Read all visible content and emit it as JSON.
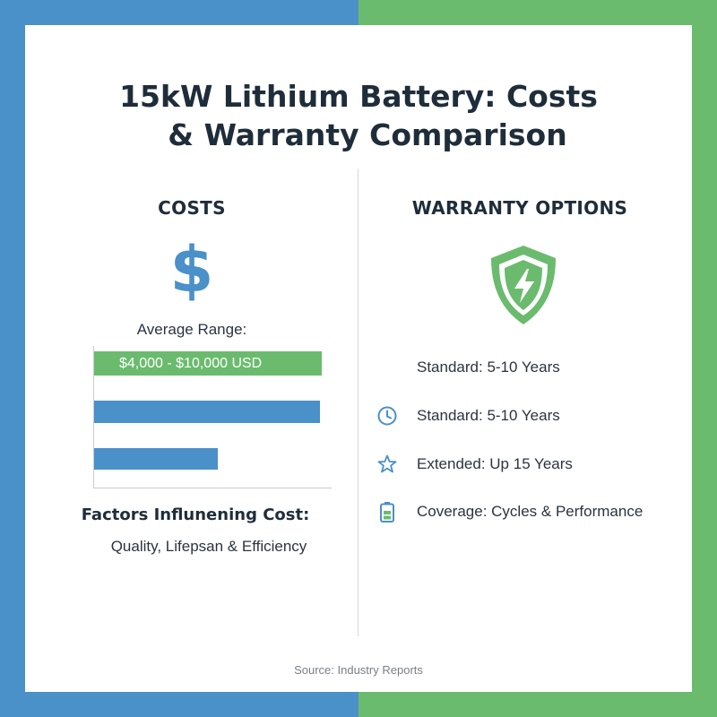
{
  "title": {
    "line1": "15kW Lithium Battery: Costs",
    "line2": "& Warranty Comparison"
  },
  "costs": {
    "heading": "COSTS",
    "icon": "dollar-icon",
    "icon_glyph": "$",
    "average_label": "Average Range:",
    "range_label": "$4,000 - $10,000 USD",
    "bars": [
      {
        "fraction": 0.96,
        "color": "#6bbb6e"
      },
      {
        "fraction": 0.95,
        "color": "#4a90c9"
      },
      {
        "fraction": 0.52,
        "color": "#4a90c9"
      }
    ],
    "factors_heading": "Factors Influnening Cost:",
    "factors_text": "Quality, Lifepsan & Efficiency"
  },
  "warranty": {
    "heading": "WARRANTY OPTIONS",
    "icon": "shield-lightning-icon",
    "items": [
      {
        "icon": "none",
        "label": "Standard: 5-10 Years"
      },
      {
        "icon": "clock-icon",
        "label": "Standard: 5-10 Years"
      },
      {
        "icon": "star-icon",
        "label": "Extended: Up 15 Years"
      },
      {
        "icon": "battery-icon",
        "label": "Coverage: Cycles & Performance"
      }
    ]
  },
  "source": "Source: Industry Reports",
  "colors": {
    "blue": "#4a90c9",
    "green": "#6bbb6e",
    "text_dark": "#1f2d3a"
  }
}
